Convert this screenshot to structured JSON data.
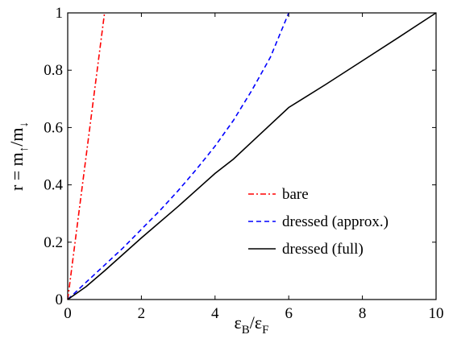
{
  "chart_data": {
    "type": "line",
    "title": "",
    "xlabel": "ε_B/ε_F",
    "ylabel": "r = m_↑/m_↓",
    "xlim": [
      0,
      10
    ],
    "ylim": [
      0,
      1
    ],
    "x_ticks": [
      "0",
      "2",
      "4",
      "6",
      "8",
      "10"
    ],
    "y_ticks": [
      "0",
      "0.2",
      "0.4",
      "0.6",
      "0.8",
      "1"
    ],
    "grid": false,
    "legend_position": "lower-right",
    "series": [
      {
        "name": "bare",
        "color": "#ff0000",
        "style": "dash-dot",
        "points": [
          [
            0,
            0
          ],
          [
            1,
            1
          ]
        ]
      },
      {
        "name": "dressed (approx.)",
        "color": "#0000ff",
        "style": "dashed",
        "points": [
          [
            0,
            0
          ],
          [
            0.5,
            0.06
          ],
          [
            1,
            0.12
          ],
          [
            1.5,
            0.18
          ],
          [
            2,
            0.245
          ],
          [
            2.5,
            0.31
          ],
          [
            3,
            0.38
          ],
          [
            3.5,
            0.455
          ],
          [
            4,
            0.535
          ],
          [
            4.5,
            0.625
          ],
          [
            5,
            0.73
          ],
          [
            5.5,
            0.845
          ],
          [
            6,
            1.0
          ]
        ]
      },
      {
        "name": "dressed (full)",
        "color": "#000000",
        "style": "solid",
        "points": [
          [
            0,
            0
          ],
          [
            0.5,
            0.045
          ],
          [
            1,
            0.1
          ],
          [
            2,
            0.215
          ],
          [
            3,
            0.325
          ],
          [
            4,
            0.44
          ],
          [
            4.5,
            0.49
          ],
          [
            5,
            0.55
          ],
          [
            6,
            0.67
          ],
          [
            7,
            0.75
          ],
          [
            8,
            0.833
          ],
          [
            9,
            0.916
          ],
          [
            10,
            1.0
          ]
        ]
      }
    ]
  }
}
